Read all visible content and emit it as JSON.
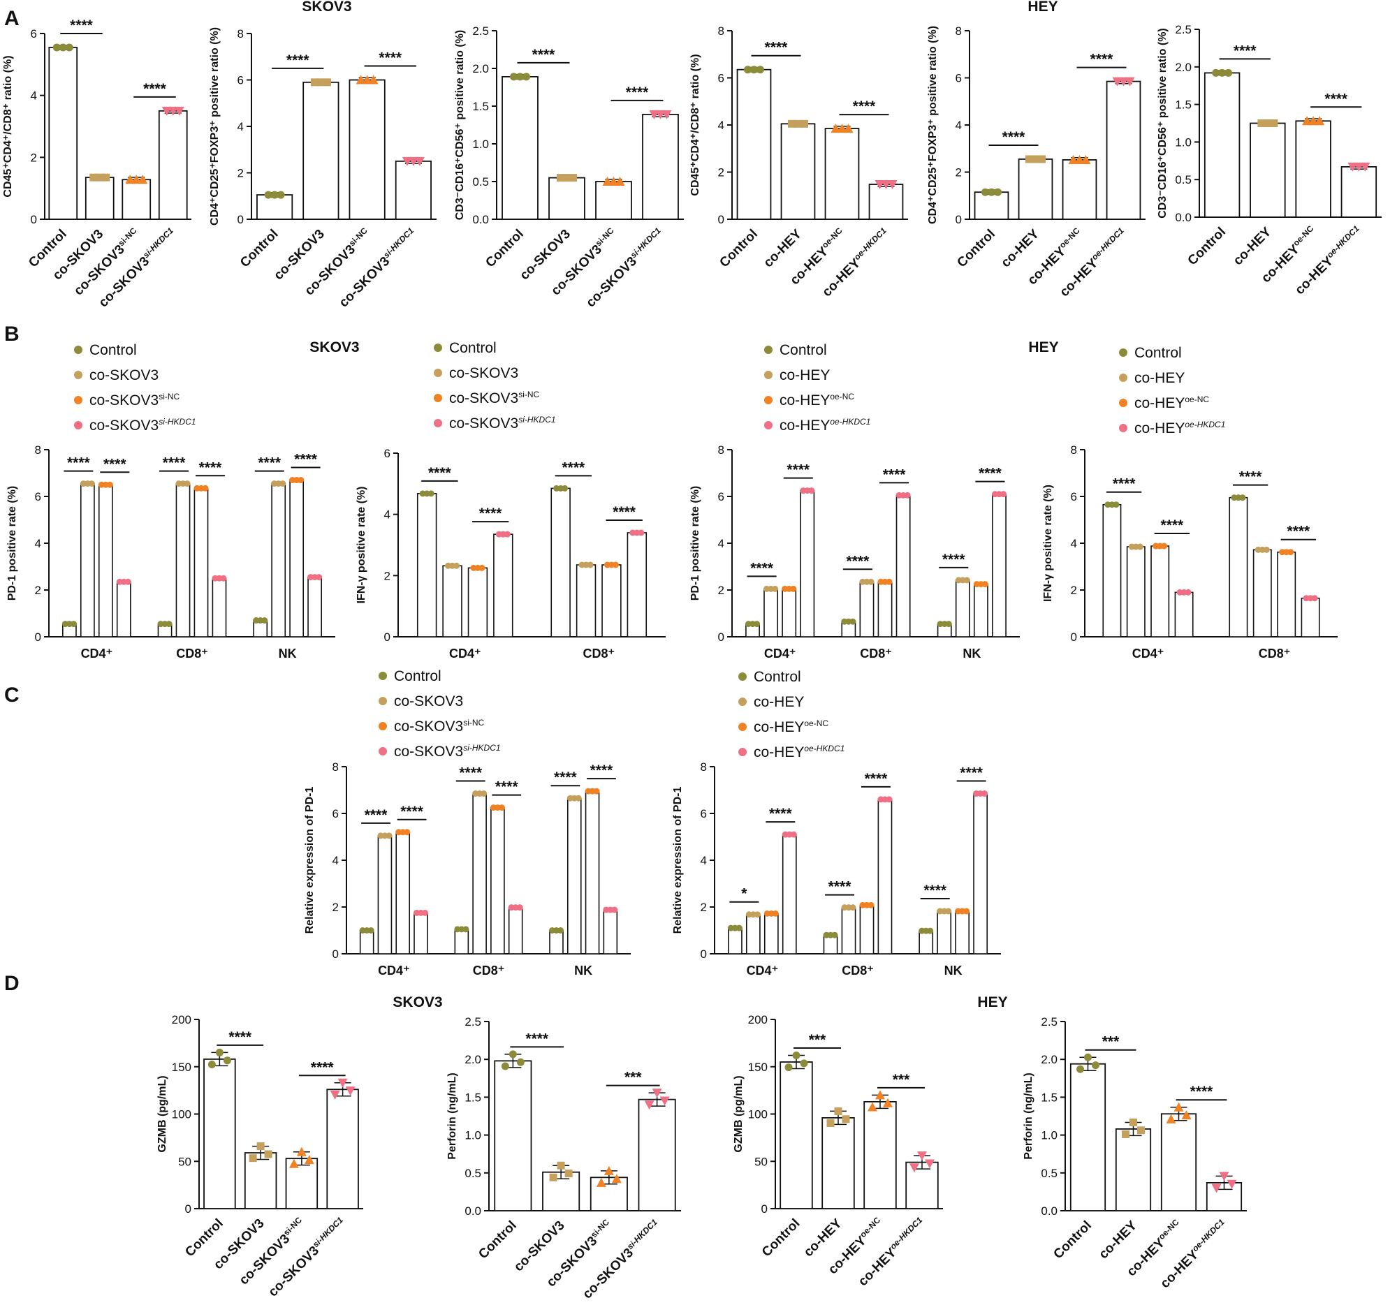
{
  "panels": [
    {
      "label": "A"
    },
    {
      "label": "B"
    },
    {
      "label": "C"
    },
    {
      "label": "D"
    }
  ],
  "group_titles": [
    {
      "text": "SKOV3"
    },
    {
      "text": "HEY"
    },
    {
      "text": "SKOV3"
    },
    {
      "text": "HEY"
    },
    {
      "text": "SKOV3"
    },
    {
      "text": "HEY"
    }
  ],
  "colors": {
    "control": "#8b8b3a",
    "co": "#c5a05c",
    "nc": "#f08224",
    "si": "#ef6f84"
  },
  "chart_data": [
    {
      "type": "bar",
      "panel": "A",
      "ylabel": "CD45⁺CD4⁺/CD8⁺ ratio (%)",
      "ylim": [
        0,
        6
      ],
      "yticks": [
        0,
        2,
        4,
        6
      ],
      "categories": [
        "Control",
        "co-SKOV3",
        "co-SKOV3si-NC",
        "co-SKOV3si-HKDC1"
      ],
      "values": [
        5.55,
        1.35,
        1.28,
        3.5
      ],
      "significance": [
        {
          "from": 0,
          "to": 1,
          "label": "****"
        },
        {
          "from": 2,
          "to": 3,
          "label": "****"
        }
      ]
    },
    {
      "type": "bar",
      "panel": "A",
      "ylabel": "CD4⁺CD25⁺FOXP3⁺ positive ratio (%)",
      "ylim": [
        0,
        8
      ],
      "yticks": [
        0,
        2,
        4,
        6,
        8
      ],
      "categories": [
        "Control",
        "co-SKOV3",
        "co-SKOV3si-NC",
        "co-SKOV3si-HKDC1"
      ],
      "values": [
        1.05,
        5.9,
        6.0,
        2.5
      ],
      "significance": [
        {
          "from": 0,
          "to": 1,
          "label": "****"
        },
        {
          "from": 2,
          "to": 3,
          "label": "****"
        }
      ]
    },
    {
      "type": "bar",
      "panel": "A",
      "ylabel": "CD3⁻CD16⁺CD56⁺ positive ratio (%)",
      "ylim": [
        0,
        2.5
      ],
      "yticks": [
        0.0,
        0.5,
        1.0,
        1.5,
        2.0,
        2.5
      ],
      "categories": [
        "Control",
        "co-SKOV3",
        "co-SKOV3si-NC",
        "co-SKOV3si-HKDC1"
      ],
      "values": [
        1.89,
        0.55,
        0.5,
        1.39
      ],
      "significance": [
        {
          "from": 0,
          "to": 1,
          "label": "****"
        },
        {
          "from": 2,
          "to": 3,
          "label": "****"
        }
      ]
    },
    {
      "type": "bar",
      "panel": "A",
      "ylabel": "CD45⁺CD4⁺/CD8⁺ ratio (%)",
      "ylim": [
        0,
        8
      ],
      "yticks": [
        0,
        2,
        4,
        6,
        8
      ],
      "categories": [
        "Control",
        "co-HEY",
        "co-HEYoe-NC",
        "co-HEYoe-HKDC1"
      ],
      "values": [
        6.35,
        4.05,
        3.85,
        1.48
      ],
      "significance": [
        {
          "from": 0,
          "to": 1,
          "label": "****"
        },
        {
          "from": 2,
          "to": 3,
          "label": "****"
        }
      ]
    },
    {
      "type": "bar",
      "panel": "A",
      "ylabel": "CD4⁺CD25⁺FOXP3⁺ positive ratio (%)",
      "ylim": [
        0,
        8
      ],
      "yticks": [
        0,
        2,
        4,
        6,
        8
      ],
      "categories": [
        "Control",
        "co-HEY",
        "co-HEYoe-NC",
        "co-HEYoe-HKDC1"
      ],
      "values": [
        1.15,
        2.55,
        2.52,
        5.85
      ],
      "significance": [
        {
          "from": 0,
          "to": 1,
          "label": "****"
        },
        {
          "from": 2,
          "to": 3,
          "label": "****"
        }
      ]
    },
    {
      "type": "bar",
      "panel": "A",
      "ylabel": "CD3⁻CD16⁺CD56⁺ positive ratio (%)",
      "ylim": [
        0,
        2.5
      ],
      "yticks": [
        0.0,
        0.5,
        1.0,
        1.5,
        2.0,
        2.5
      ],
      "categories": [
        "Control",
        "co-HEY",
        "co-HEYoe-NC",
        "co-HEYoe-HKDC1"
      ],
      "values": [
        1.92,
        1.25,
        1.28,
        0.67
      ],
      "significance": [
        {
          "from": 0,
          "to": 1,
          "label": "****"
        },
        {
          "from": 2,
          "to": 3,
          "label": "****"
        }
      ]
    },
    {
      "type": "bar",
      "panel": "B",
      "ylabel": "PD-1 positive rate (%)",
      "ylim": [
        0,
        8
      ],
      "yticks": [
        0,
        2,
        4,
        6,
        8
      ],
      "groups": [
        "CD4⁺",
        "CD8⁺",
        "NK"
      ],
      "legend": [
        "Control",
        "co-SKOV3",
        "co-SKOV3si-NC",
        "co-SKOV3si-HKDC1"
      ],
      "series_values": [
        [
          0.55,
          6.55,
          6.5,
          2.35
        ],
        [
          0.55,
          6.55,
          6.35,
          2.5
        ],
        [
          0.7,
          6.55,
          6.7,
          2.55
        ]
      ],
      "significance_label": "****"
    },
    {
      "type": "bar",
      "panel": "B",
      "ylabel": "IFN-γ positive rate (%)",
      "ylim": [
        0,
        6
      ],
      "yticks": [
        0,
        2,
        4,
        6
      ],
      "groups": [
        "CD4⁺",
        "CD8⁺"
      ],
      "legend": [
        "Control",
        "co-SKOV3",
        "co-SKOV3si-NC",
        "co-SKOV3si-HKDC1"
      ],
      "series_values": [
        [
          4.68,
          2.32,
          2.25,
          3.35
        ],
        [
          4.85,
          2.35,
          2.35,
          3.4
        ]
      ],
      "significance_label": "****"
    },
    {
      "type": "bar",
      "panel": "B",
      "ylabel": "PD-1 positive rate (%)",
      "ylim": [
        0,
        8
      ],
      "yticks": [
        0,
        2,
        4,
        6,
        8
      ],
      "groups": [
        "CD4⁺",
        "CD8⁺",
        "NK"
      ],
      "legend": [
        "Control",
        "co-HEY",
        "co-HEYoe-NC",
        "co-HEYoe-HKDC1"
      ],
      "series_values": [
        [
          0.55,
          2.05,
          2.05,
          6.25
        ],
        [
          0.65,
          2.35,
          2.35,
          6.05
        ],
        [
          0.55,
          2.42,
          2.25,
          6.1
        ]
      ],
      "significance_label": "****"
    },
    {
      "type": "bar",
      "panel": "B",
      "ylabel": "IFN-γ positive rate (%)",
      "ylim": [
        0,
        8
      ],
      "yticks": [
        0,
        2,
        4,
        6,
        8
      ],
      "groups": [
        "CD4⁺",
        "CD8⁺"
      ],
      "legend": [
        "Control",
        "co-HEY",
        "co-HEYoe-NC",
        "co-HEYoe-HKDC1"
      ],
      "series_values": [
        [
          5.65,
          3.85,
          3.88,
          1.9
        ],
        [
          5.95,
          3.72,
          3.62,
          1.65
        ]
      ],
      "significance_label": "****"
    },
    {
      "type": "bar",
      "panel": "C",
      "ylabel": "Relative expression of PD-1",
      "ylim": [
        0,
        8
      ],
      "yticks": [
        0,
        2,
        4,
        6,
        8
      ],
      "groups": [
        "CD4⁺",
        "CD8⁺",
        "NK"
      ],
      "legend": [
        "Control",
        "co-SKOV3",
        "co-SKOV3si-NC",
        "co-SKOV3si-HKDC1"
      ],
      "series_values": [
        [
          1.0,
          5.05,
          5.2,
          1.75
        ],
        [
          1.05,
          6.85,
          6.25,
          1.98
        ],
        [
          1.0,
          6.65,
          6.95,
          1.88
        ]
      ],
      "significance": [
        [
          "****",
          "****"
        ],
        [
          "****",
          "****"
        ],
        [
          "****",
          "****"
        ]
      ]
    },
    {
      "type": "bar",
      "panel": "C",
      "ylabel": "Relative expression of PD-1",
      "ylim": [
        0,
        8
      ],
      "yticks": [
        0,
        2,
        4,
        6,
        8
      ],
      "groups": [
        "CD4⁺",
        "CD8⁺",
        "NK"
      ],
      "legend": [
        "Control",
        "co-HEY",
        "co-HEYoe-NC",
        "co-HEYoe-HKDC1"
      ],
      "series_values": [
        [
          1.1,
          1.68,
          1.72,
          5.1
        ],
        [
          0.8,
          1.98,
          2.08,
          6.6
        ],
        [
          0.98,
          1.82,
          1.82,
          6.85
        ]
      ],
      "significance": [
        [
          "*",
          "****"
        ],
        [
          "****",
          "****"
        ],
        [
          "****",
          "****"
        ]
      ]
    },
    {
      "type": "bar",
      "panel": "D",
      "ylabel": "GZMB (pg/mL)",
      "ylim": [
        0,
        200
      ],
      "yticks": [
        0,
        50,
        100,
        150,
        200
      ],
      "categories": [
        "Control",
        "co-SKOV3",
        "co-SKOV3si-NC",
        "co-SKOV3si-HKDC1"
      ],
      "values": [
        158,
        59,
        53,
        126
      ],
      "significance": [
        {
          "from": 0,
          "to": 1,
          "label": "****"
        },
        {
          "from": 2,
          "to": 3,
          "label": "****"
        }
      ]
    },
    {
      "type": "bar",
      "panel": "D",
      "ylabel": "Perforin (ng/mL)",
      "ylim": [
        0,
        2.5
      ],
      "yticks": [
        0.0,
        0.5,
        1.0,
        1.5,
        2.0,
        2.5
      ],
      "categories": [
        "Control",
        "co-SKOV3",
        "co-SKOV3si-NC",
        "co-SKOV3si-HKDC1"
      ],
      "values": [
        1.98,
        0.51,
        0.44,
        1.47
      ],
      "significance": [
        {
          "from": 0,
          "to": 1,
          "label": "****"
        },
        {
          "from": 2,
          "to": 3,
          "label": "***"
        }
      ]
    },
    {
      "type": "bar",
      "panel": "D",
      "ylabel": "GZMB (pg/mL)",
      "ylim": [
        0,
        200
      ],
      "yticks": [
        0,
        50,
        100,
        150,
        200
      ],
      "categories": [
        "Control",
        "co-HEY",
        "co-HEYoe-NC",
        "co-HEYoe-HKDC1"
      ],
      "values": [
        155,
        96,
        113,
        49
      ],
      "significance": [
        {
          "from": 0,
          "to": 1,
          "label": "***"
        },
        {
          "from": 2,
          "to": 3,
          "label": "***"
        }
      ]
    },
    {
      "type": "bar",
      "panel": "D",
      "ylabel": "Perforin (ng/mL)",
      "ylim": [
        0,
        2.5
      ],
      "yticks": [
        0.0,
        0.5,
        1.0,
        1.5,
        2.0,
        2.5
      ],
      "categories": [
        "Control",
        "co-HEY",
        "co-HEYoe-NC",
        "co-HEYoe-HKDC1"
      ],
      "values": [
        1.94,
        1.08,
        1.28,
        0.37
      ],
      "significance": [
        {
          "from": 0,
          "to": 1,
          "label": "***"
        },
        {
          "from": 2,
          "to": 3,
          "label": "****"
        }
      ]
    }
  ]
}
